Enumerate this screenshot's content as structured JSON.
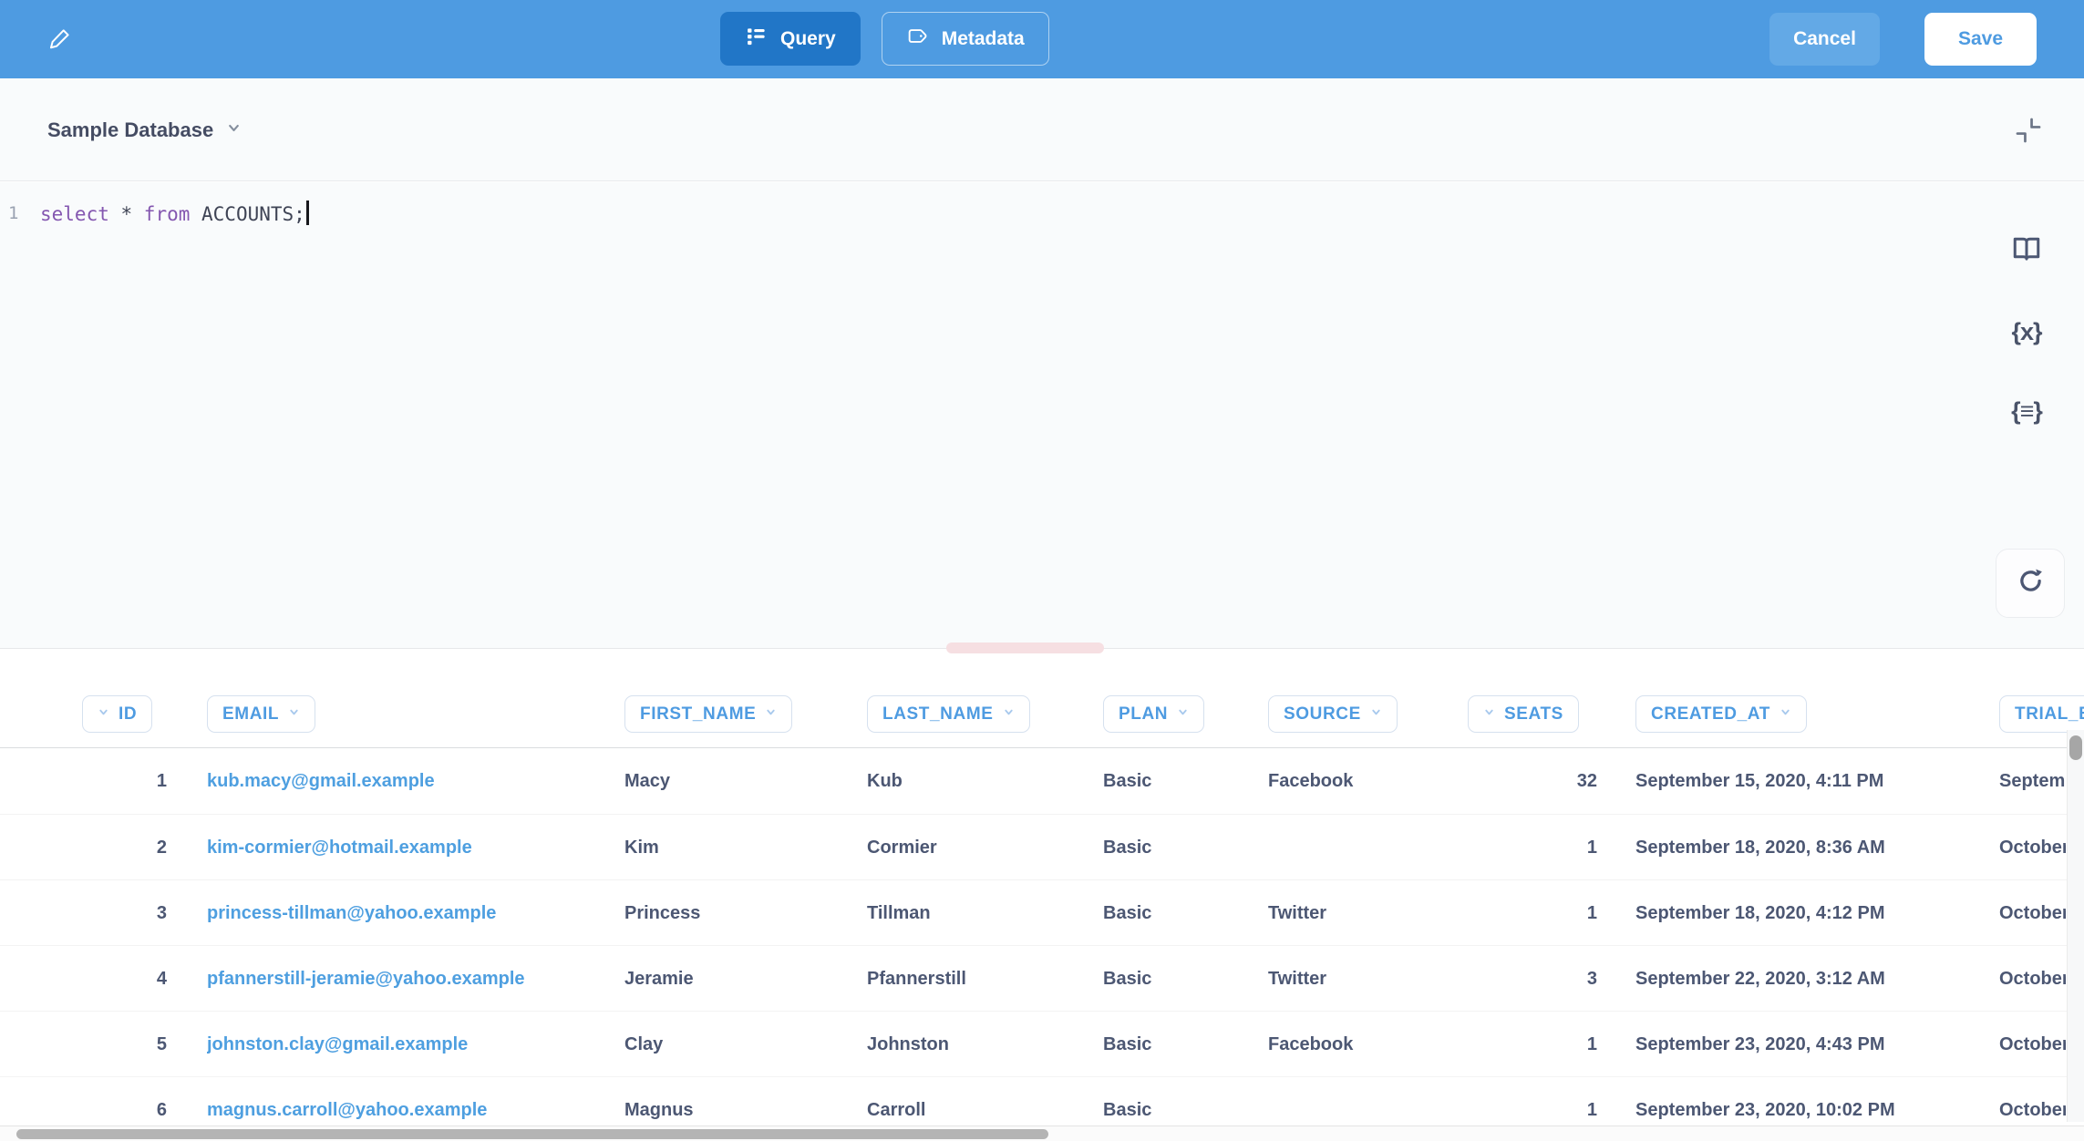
{
  "colors": {
    "brand_blue": "#4e9be1",
    "active_tab_blue": "#2176c7",
    "text_dark": "#4c5773",
    "link_blue": "#4e9fe0",
    "keyword_purple": "#8457b0",
    "handle_pink": "#f6dfe2"
  },
  "top_bar": {
    "tabs": [
      {
        "label": "Query"
      },
      {
        "label": "Metadata"
      }
    ],
    "cancel_label": "Cancel",
    "save_label": "Save"
  },
  "query_panel": {
    "database_name": "Sample Database",
    "line_number": "1",
    "sql": {
      "kw1": "select",
      "star": " * ",
      "kw2": "from",
      "rest": " ACCOUNTS;"
    }
  },
  "results_table": {
    "columns": [
      {
        "key": "id",
        "label": "ID",
        "align": "right"
      },
      {
        "key": "email",
        "label": "EMAIL",
        "align": "left"
      },
      {
        "key": "first_name",
        "label": "FIRST_NAME",
        "align": "left"
      },
      {
        "key": "last_name",
        "label": "LAST_NAME",
        "align": "left"
      },
      {
        "key": "plan",
        "label": "PLAN",
        "align": "left"
      },
      {
        "key": "source",
        "label": "SOURCE",
        "align": "left"
      },
      {
        "key": "seats",
        "label": "SEATS",
        "align": "right"
      },
      {
        "key": "created_at",
        "label": "CREATED_AT",
        "align": "left"
      },
      {
        "key": "trial",
        "label": "TRIAL_E",
        "align": "left"
      }
    ],
    "rows": [
      {
        "id": "1",
        "email": "kub.macy@gmail.example",
        "first_name": "Macy",
        "last_name": "Kub",
        "plan": "Basic",
        "source": "Facebook",
        "seats": "32",
        "created_at": "September 15, 2020, 4:11 PM",
        "trial": "Septemb"
      },
      {
        "id": "2",
        "email": "kim-cormier@hotmail.example",
        "first_name": "Kim",
        "last_name": "Cormier",
        "plan": "Basic",
        "source": "",
        "seats": "1",
        "created_at": "September 18, 2020, 8:36 AM",
        "trial": "October"
      },
      {
        "id": "3",
        "email": "princess-tillman@yahoo.example",
        "first_name": "Princess",
        "last_name": "Tillman",
        "plan": "Basic",
        "source": "Twitter",
        "seats": "1",
        "created_at": "September 18, 2020, 4:12 PM",
        "trial": "October"
      },
      {
        "id": "4",
        "email": "pfannerstill-jeramie@yahoo.example",
        "first_name": "Jeramie",
        "last_name": "Pfannerstill",
        "plan": "Basic",
        "source": "Twitter",
        "seats": "3",
        "created_at": "September 22, 2020, 3:12 AM",
        "trial": "October"
      },
      {
        "id": "5",
        "email": "johnston.clay@gmail.example",
        "first_name": "Clay",
        "last_name": "Johnston",
        "plan": "Basic",
        "source": "Facebook",
        "seats": "1",
        "created_at": "September 23, 2020, 4:43 PM",
        "trial": "October"
      },
      {
        "id": "6",
        "email": "magnus.carroll@yahoo.example",
        "first_name": "Magnus",
        "last_name": "Carroll",
        "plan": "Basic",
        "source": "",
        "seats": "1",
        "created_at": "September 23, 2020, 10:02 PM",
        "trial": "October"
      }
    ]
  }
}
